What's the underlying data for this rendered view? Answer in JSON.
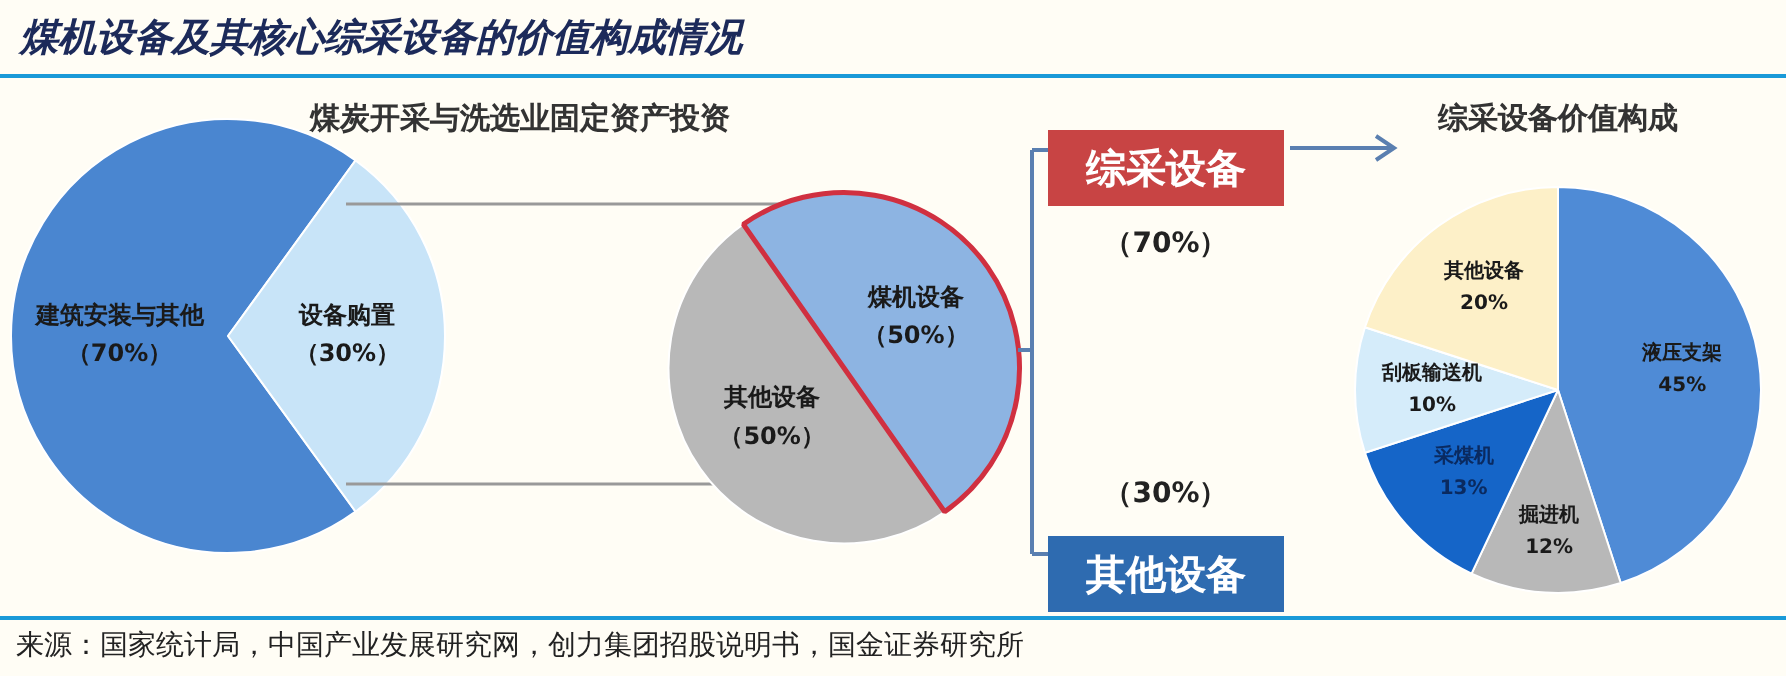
{
  "chart_data": [
    {
      "type": "pie",
      "title": "煤机设备及其核心综采设备的价值构成情况",
      "subtitle": "煤炭开采与洗选业固定资产投资",
      "categories": [
        "建筑安装与其他",
        "设备购置"
      ],
      "values": [
        70,
        30
      ],
      "colors": [
        "#4a86d0",
        "#c8e4f8"
      ],
      "value_labels": [
        "（70%）",
        "（30%）"
      ],
      "legend": false,
      "annotations": [
        "来源：国家统计局，中国产业发展研究网，创力集团招股说明书，国金证券研究所"
      ]
    },
    {
      "type": "pie",
      "categories": [
        "其他设备",
        "煤机设备"
      ],
      "values": [
        50,
        50
      ],
      "colors": [
        "#b8b8b8",
        "#8db4e2"
      ],
      "value_labels": [
        "（50%）",
        "（50%）"
      ],
      "legend": false
    },
    {
      "type": "other",
      "categories": [
        "综采设备",
        "其他设备"
      ],
      "colors": [
        "#c84444",
        "#2e6bb0"
      ],
      "value_labels": [
        "（70%）",
        "（30%）"
      ]
    },
    {
      "type": "pie",
      "title": "综采设备价值构成",
      "categories": [
        "液压支架",
        "掘进机",
        "采煤机",
        "刮板输送机",
        "其他设备"
      ],
      "values": [
        45,
        12,
        13,
        10,
        20
      ],
      "colors": [
        "#4f8bd6",
        "#b8b8b8",
        "#1565c8",
        "#d5ecfa",
        "#fdf0c8"
      ],
      "value_labels": [
        "45%",
        "12%",
        "13%",
        "10%",
        "20%"
      ],
      "legend": false
    }
  ]
}
